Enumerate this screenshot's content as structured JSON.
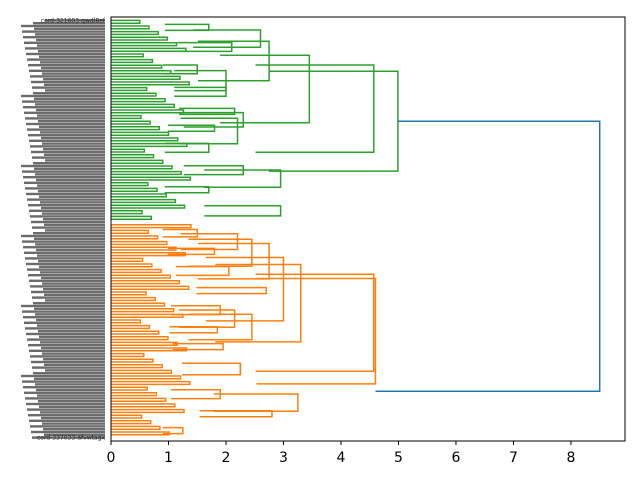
{
  "chart_data": {
    "type": "dendrogram",
    "orientation": "right",
    "title": "",
    "xlabel": "",
    "ylabel": "",
    "xlim": [
      0,
      8.94
    ],
    "xticks": [
      "0",
      "1",
      "2",
      "3",
      "4",
      "5",
      "6",
      "7",
      "8"
    ],
    "colors": {
      "cluster_green": "#2ca02c",
      "cluster_orange": "#ff7f0e",
      "link_above_threshold": "#1f77b4",
      "axis": "#000000"
    },
    "visible_leaf_labels": {
      "first": "cord-321603-qwdl8ef",
      "last": "cord-337033-afvwtagx"
    },
    "leaf_count": 150,
    "clusters": [
      {
        "name": "green",
        "leaf_range": [
          0,
          73
        ],
        "merges": [
          {
            "span": [
              0,
              6
            ],
            "height": 1.7
          },
          {
            "span": [
              6,
              14
            ],
            "height": 2.1
          },
          {
            "span": [
              0,
              14
            ],
            "height": 2.6
          },
          {
            "span": [
              14,
              22
            ],
            "height": 1.5
          },
          {
            "span": [
              22,
              30
            ],
            "height": 2.0
          },
          {
            "span": [
              14,
              30
            ],
            "height": 2.0
          },
          {
            "span": [
              0,
              30
            ],
            "height": 2.75
          },
          {
            "span": [
              30,
              36
            ],
            "height": 2.15
          },
          {
            "span": [
              36,
              42
            ],
            "height": 1.8
          },
          {
            "span": [
              30,
              42
            ],
            "height": 2.3
          },
          {
            "span": [
              42,
              50
            ],
            "height": 1.7
          },
          {
            "span": [
              30,
              50
            ],
            "height": 2.2
          },
          {
            "span": [
              0,
              50
            ],
            "height": 3.45
          },
          {
            "span": [
              50,
              58
            ],
            "height": 2.3
          },
          {
            "span": [
              58,
              64
            ],
            "height": 1.7
          },
          {
            "span": [
              50,
              64
            ],
            "height": 2.95
          },
          {
            "span": [
              0,
              64
            ],
            "height": 4.57
          },
          {
            "span": [
              64,
              73
            ],
            "height": 2.95
          },
          {
            "span": [
              0,
              73
            ],
            "height": 4.99
          }
        ]
      },
      {
        "name": "orange",
        "leaf_range": [
          73,
          150
        ],
        "merges": [
          {
            "span": [
              73,
              80
            ],
            "height": 1.5
          },
          {
            "span": [
              80,
              86
            ],
            "height": 1.8
          },
          {
            "span": [
              73,
              86
            ],
            "height": 2.2
          },
          {
            "span": [
              86,
              94
            ],
            "height": 2.05
          },
          {
            "span": [
              73,
              94
            ],
            "height": 2.45
          },
          {
            "span": [
              94,
              100
            ],
            "height": 2.7
          },
          {
            "span": [
              73,
              100
            ],
            "height": 2.75
          },
          {
            "span": [
              100,
              108
            ],
            "height": 1.9
          },
          {
            "span": [
              108,
              114
            ],
            "height": 1.85
          },
          {
            "span": [
              100,
              114
            ],
            "height": 2.15
          },
          {
            "span": [
              114,
              120
            ],
            "height": 1.95
          },
          {
            "span": [
              100,
              120
            ],
            "height": 2.45
          },
          {
            "span": [
              73,
              120
            ],
            "height": 3.0
          },
          {
            "span": [
              120,
              130
            ],
            "height": 2.25
          },
          {
            "span": [
              120,
              130
            ],
            "height": 2.25
          },
          {
            "span": [
              73,
              130
            ],
            "height": 3.3
          },
          {
            "span": [
              130,
              138
            ],
            "height": 1.9
          },
          {
            "span": [
              138,
              144
            ],
            "height": 2.8
          },
          {
            "span": [
              130,
              144
            ],
            "height": 3.25
          },
          {
            "span": [
              73,
              144
            ],
            "height": 4.57
          },
          {
            "span": [
              144,
              150
            ],
            "height": 1.25
          },
          {
            "span": [
              73,
              150
            ],
            "height": 4.6
          }
        ]
      }
    ],
    "root": {
      "height": 8.5,
      "color": "link_above_threshold"
    }
  }
}
